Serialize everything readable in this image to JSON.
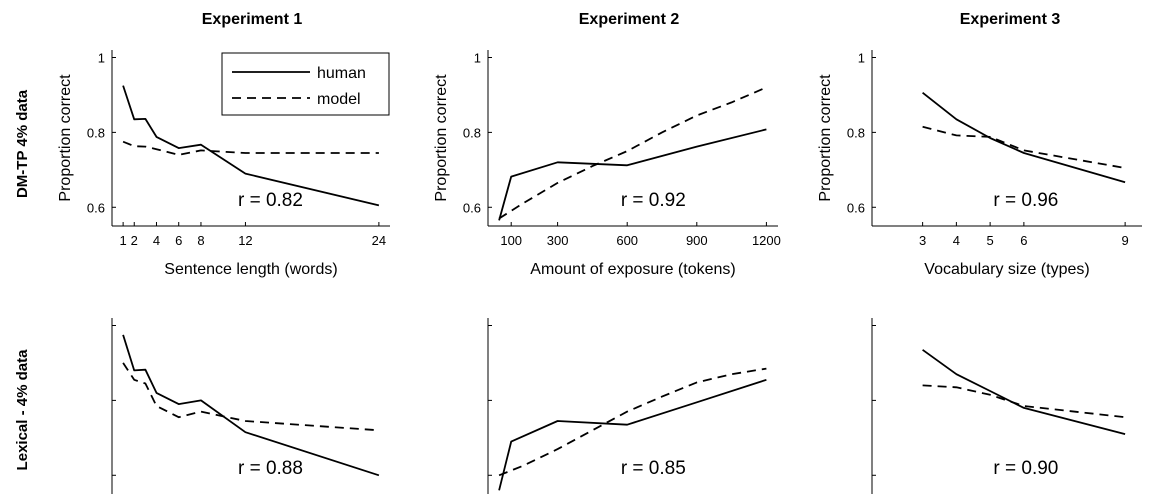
{
  "column_titles": [
    "Experiment 1",
    "Experiment 2",
    "Experiment 3"
  ],
  "row_labels": [
    "DM-TP 4% data",
    "Lexical - 4% data"
  ],
  "legend": {
    "human": "human",
    "model": "model"
  },
  "chart_data": [
    {
      "type": "line",
      "experiment": "Experiment 1",
      "row": "DM-TP 4% data",
      "xlabel": "Sentence length (words)",
      "ylabel": "Proportion correct",
      "x_ticks": [
        1,
        2,
        4,
        6,
        8,
        12,
        24
      ],
      "x_tick_labels": [
        "1",
        "2",
        "4",
        "6",
        "8",
        "12",
        "24"
      ],
      "y_ticks": [
        0.6,
        0.8,
        1
      ],
      "y_tick_labels": [
        "0.6",
        "0.8",
        "1"
      ],
      "xlim": [
        0,
        25
      ],
      "ylim": [
        0.55,
        1.02
      ],
      "annotation": "r = 0.82",
      "legend_position": "top-right",
      "series": [
        {
          "name": "human",
          "style": "solid",
          "x": [
            1,
            2,
            3,
            4,
            6,
            8,
            12,
            24
          ],
          "y": [
            0.925,
            0.835,
            0.836,
            0.788,
            0.758,
            0.767,
            0.69,
            0.605
          ]
        },
        {
          "name": "model",
          "style": "dashed",
          "x": [
            1,
            2,
            3,
            4,
            6,
            8,
            12,
            24
          ],
          "y": [
            0.775,
            0.763,
            0.762,
            0.755,
            0.74,
            0.752,
            0.745,
            0.745
          ]
        }
      ]
    },
    {
      "type": "line",
      "experiment": "Experiment 2",
      "row": "DM-TP 4% data",
      "xlabel": "Amount of exposure (tokens)",
      "ylabel": "Proportion correct",
      "x_ticks": [
        100,
        300,
        600,
        900,
        1200
      ],
      "x_tick_labels": [
        "100",
        "300",
        "600",
        "900",
        "1200"
      ],
      "y_ticks": [
        0.6,
        0.8,
        1
      ],
      "y_tick_labels": [
        "0.6",
        "0.8",
        "1"
      ],
      "xlim": [
        0,
        1250
      ],
      "ylim": [
        0.55,
        1.02
      ],
      "annotation": "r = 0.92",
      "series": [
        {
          "name": "human",
          "style": "solid",
          "x": [
            48,
            100,
            300,
            600,
            900,
            1200
          ],
          "y": [
            0.565,
            0.682,
            0.72,
            0.712,
            0.762,
            0.808
          ]
        },
        {
          "name": "model",
          "style": "dashed",
          "x": [
            48,
            150,
            300,
            450,
            600,
            750,
            900,
            1050,
            1200
          ],
          "y": [
            0.57,
            0.61,
            0.665,
            0.71,
            0.75,
            0.8,
            0.845,
            0.88,
            0.92
          ]
        }
      ]
    },
    {
      "type": "line",
      "experiment": "Experiment 3",
      "row": "DM-TP 4% data",
      "xlabel": "Vocabulary size (types)",
      "ylabel": "Proportion correct",
      "x_ticks": [
        3,
        4,
        5,
        6,
        9
      ],
      "x_tick_labels": [
        "3",
        "4",
        "5",
        "6",
        "9"
      ],
      "y_ticks": [
        0.6,
        0.8,
        1
      ],
      "y_tick_labels": [
        "0.6",
        "0.8",
        "1"
      ],
      "xlim": [
        1.5,
        9.5
      ],
      "ylim": [
        0.55,
        1.02
      ],
      "annotation": "r = 0.96",
      "series": [
        {
          "name": "human",
          "style": "solid",
          "x": [
            3,
            4,
            5,
            6,
            9
          ],
          "y": [
            0.906,
            0.835,
            0.785,
            0.745,
            0.667
          ]
        },
        {
          "name": "model",
          "style": "dashed",
          "x": [
            3,
            4,
            5,
            6,
            9
          ],
          "y": [
            0.815,
            0.792,
            0.788,
            0.752,
            0.705
          ]
        }
      ]
    },
    {
      "type": "line",
      "experiment": "Experiment 1",
      "row": "Lexical - 4% data",
      "x_ticks": [
        1,
        2,
        4,
        6,
        8,
        12,
        24
      ],
      "y_ticks": [
        0.6,
        0.8,
        1
      ],
      "xlim": [
        0,
        25
      ],
      "ylim": [
        0.55,
        1.02
      ],
      "annotation": "r = 0.88",
      "series": [
        {
          "name": "human",
          "style": "solid",
          "x": [
            1,
            2,
            3,
            4,
            6,
            8,
            12,
            24
          ],
          "y": [
            0.975,
            0.88,
            0.882,
            0.82,
            0.79,
            0.8,
            0.715,
            0.6
          ]
        },
        {
          "name": "model",
          "style": "dashed",
          "x": [
            1,
            2,
            3,
            4,
            6,
            8,
            12,
            24
          ],
          "y": [
            0.9,
            0.855,
            0.845,
            0.785,
            0.755,
            0.77,
            0.745,
            0.72
          ]
        }
      ]
    },
    {
      "type": "line",
      "experiment": "Experiment 2",
      "row": "Lexical - 4% data",
      "x_ticks": [
        100,
        300,
        600,
        900,
        1200
      ],
      "y_ticks": [
        0.6,
        0.8,
        1
      ],
      "xlim": [
        0,
        1250
      ],
      "ylim": [
        0.55,
        1.02
      ],
      "annotation": "r = 0.85",
      "series": [
        {
          "name": "human",
          "style": "solid",
          "x": [
            48,
            100,
            300,
            600,
            900,
            1200
          ],
          "y": [
            0.56,
            0.69,
            0.745,
            0.735,
            0.795,
            0.855
          ]
        },
        {
          "name": "model",
          "style": "dashed",
          "x": [
            48,
            150,
            300,
            450,
            600,
            750,
            900,
            1050,
            1200
          ],
          "y": [
            0.6,
            0.625,
            0.67,
            0.72,
            0.77,
            0.81,
            0.848,
            0.87,
            0.885
          ]
        }
      ]
    },
    {
      "type": "line",
      "experiment": "Experiment 3",
      "row": "Lexical - 4% data",
      "x_ticks": [
        3,
        4,
        5,
        6,
        9
      ],
      "y_ticks": [
        0.6,
        0.8,
        1
      ],
      "xlim": [
        1.5,
        9.5
      ],
      "ylim": [
        0.55,
        1.02
      ],
      "annotation": "r = 0.90",
      "series": [
        {
          "name": "human",
          "style": "solid",
          "x": [
            3,
            4,
            5,
            6,
            9
          ],
          "y": [
            0.935,
            0.87,
            0.825,
            0.78,
            0.71
          ]
        },
        {
          "name": "model",
          "style": "dashed",
          "x": [
            3,
            4,
            5,
            6,
            9
          ],
          "y": [
            0.84,
            0.835,
            0.815,
            0.785,
            0.755
          ]
        }
      ]
    }
  ]
}
